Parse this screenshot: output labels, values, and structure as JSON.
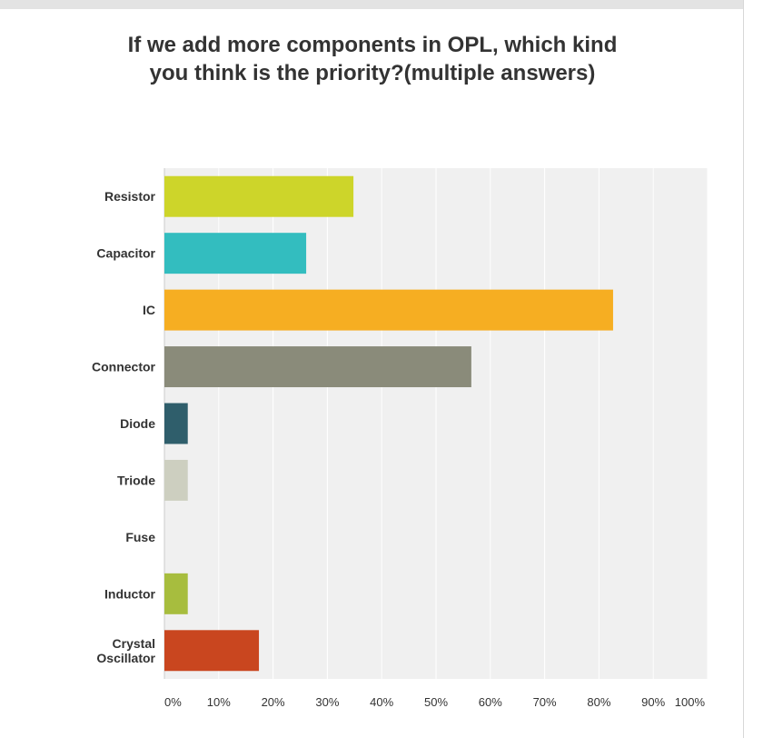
{
  "chart_data": {
    "type": "bar",
    "orientation": "horizontal",
    "title": "If we add more components in OPL, which kind you think is the priority?(multiple answers)",
    "categories": [
      "Resistor",
      "Capacitor",
      "IC",
      "Connector",
      "Diode",
      "Triode",
      "Fuse",
      "Inductor",
      "Crystal Oscillator"
    ],
    "values": [
      34.8,
      26.1,
      82.6,
      56.5,
      4.3,
      4.3,
      0,
      4.3,
      17.4
    ],
    "unit": "%",
    "xlim": [
      0,
      100
    ],
    "x_ticks": [
      "0%",
      "10%",
      "20%",
      "30%",
      "40%",
      "50%",
      "60%",
      "70%",
      "80%",
      "90%",
      "100%"
    ],
    "colors": [
      "#cdd52a",
      "#33bdbf",
      "#f6ae22",
      "#8a8b7a",
      "#2f5e6b",
      "#cdcfc0",
      "#d94f70",
      "#a7bd3e",
      "#c9461f"
    ],
    "grid": true,
    "plot_background": "#f0f0f0",
    "grid_color": "#ffffff"
  }
}
